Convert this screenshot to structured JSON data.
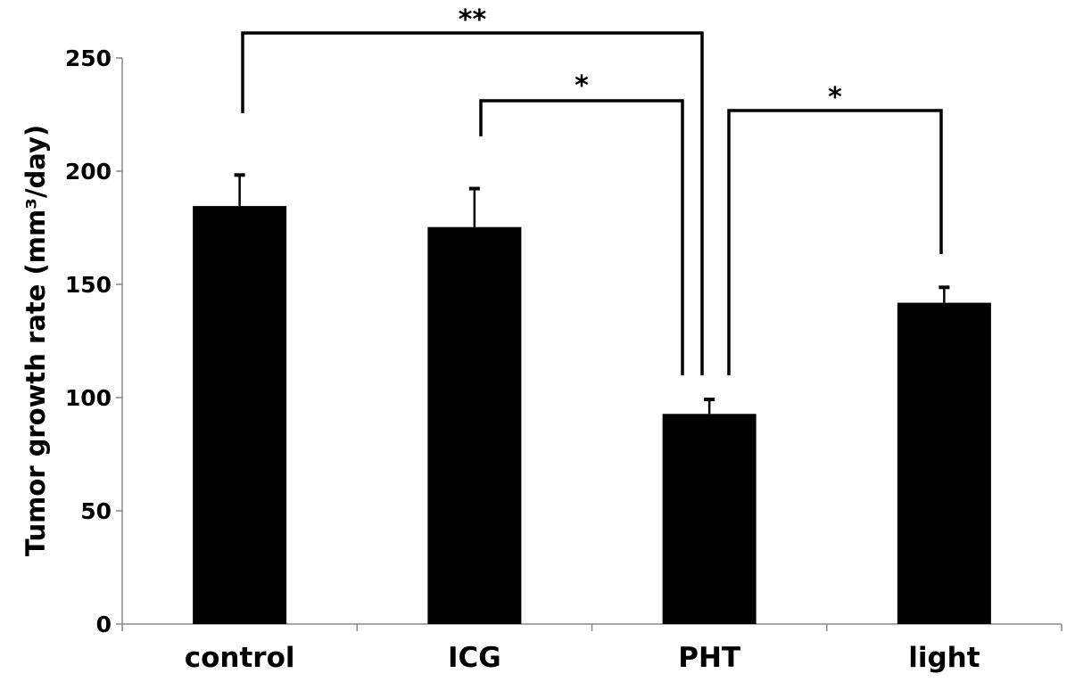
{
  "chart_data": {
    "type": "bar",
    "categories": [
      "control",
      "ICG",
      "PHT",
      "light"
    ],
    "values": [
      184.6,
      175.3,
      92.8,
      141.9
    ],
    "error_upper": [
      198.3,
      192.3,
      99.2,
      148.7
    ],
    "title": "",
    "xlabel": "",
    "ylabel": "Tumor growth rate (mm³/day)",
    "ylim": [
      0,
      250
    ],
    "yticks": [
      0,
      50,
      100,
      150,
      200,
      250
    ],
    "grid": false,
    "bar_color": "#000000",
    "significance": [
      {
        "from": "control",
        "to": "PHT",
        "label": "**"
      },
      {
        "from": "ICG",
        "to": "PHT",
        "label": "*"
      },
      {
        "from": "PHT",
        "to": "light",
        "label": "*"
      }
    ]
  }
}
